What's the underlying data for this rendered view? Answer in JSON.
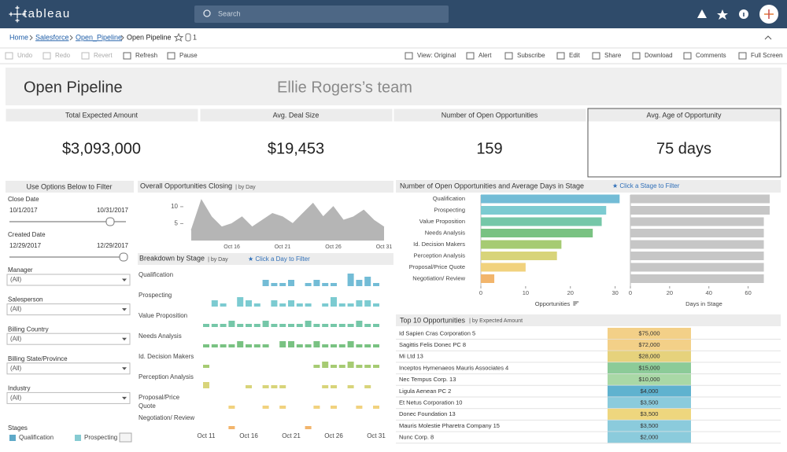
{
  "topbar": {
    "brand": "tableau",
    "search": "Search"
  },
  "breadcrumb": {
    "items": [
      "Home",
      "Salesforce",
      "Open_Pipeline",
      "Open Pipeline"
    ],
    "count": "1"
  },
  "toolbar": {
    "left": [
      "Undo",
      "Redo",
      "Revert",
      "Refresh",
      "Pause"
    ],
    "right": [
      "View: Original",
      "Alert",
      "Subscribe",
      "Edit",
      "Share",
      "Download",
      "Comments",
      "Full Screen"
    ]
  },
  "dashboard": {
    "title": "Open Pipeline",
    "team": "Ellie Rogers’s team"
  },
  "kpis": [
    {
      "label": "Total Expected Amount",
      "value": "$3,093,000"
    },
    {
      "label": "Avg. Deal Size",
      "value": "$19,453"
    },
    {
      "label": "Number of Open Opportunities",
      "value": "159"
    },
    {
      "label": "Avg. Age of Opportunity",
      "value": "75 days"
    }
  ],
  "filters": {
    "title": "Use Options Below to Filter",
    "close_date": {
      "label": "Close Date",
      "from": "10/1/2017",
      "to": "10/31/2017"
    },
    "created_date": {
      "label": "Created Date",
      "from": "12/29/2017",
      "to": "12/29/2017"
    },
    "dropdowns": [
      {
        "label": "Manager",
        "value": "(All)"
      },
      {
        "label": "Salesperson",
        "value": "(All)"
      },
      {
        "label": "Billing Country",
        "value": "(All)"
      },
      {
        "label": "Billing State/Province",
        "value": "(All)"
      },
      {
        "label": "Industry",
        "value": "(All)"
      }
    ],
    "stages": {
      "label": "Stages",
      "items": [
        {
          "name": "Qualification",
          "color": "#5ea9c8"
        },
        {
          "name": "Prospecting",
          "color": "#86cbd2"
        }
      ]
    }
  },
  "closing_chart": {
    "type": "area",
    "title": "Overall Opportunities Closing",
    "subtitle": "| by Day",
    "color": "#b5b5b5",
    "categories": [
      null,
      null,
      null,
      null,
      "Oct 16",
      null,
      null,
      null,
      null,
      "Oct 21",
      null,
      null,
      null,
      null,
      "Oct 26",
      null,
      null,
      null,
      null,
      "Oct 31"
    ],
    "values": [
      3,
      12,
      7,
      4,
      5,
      7,
      4,
      6,
      8,
      7,
      5,
      8,
      11,
      7,
      10,
      6,
      7,
      9,
      6,
      4
    ],
    "ylim": [
      0,
      13
    ],
    "yticks": [
      5,
      10
    ]
  },
  "breakdown_chart": {
    "type": "bar",
    "title": "Breakdown by Stage",
    "subtitle": "| by Day",
    "hint": "★ Click a Day to Filter",
    "categories": [
      "Oct 11",
      null,
      null,
      null,
      null,
      "Oct 16",
      null,
      null,
      null,
      null,
      "Oct 21",
      null,
      null,
      null,
      null,
      "Oct 26",
      null,
      null,
      null,
      null,
      "Oct 31"
    ],
    "ylim": [
      0,
      5
    ],
    "series": [
      {
        "name": "Qualification",
        "color": "#73bcd6",
        "values": [
          null,
          null,
          null,
          null,
          null,
          null,
          null,
          2,
          1,
          1,
          2,
          null,
          1,
          2,
          1,
          1,
          null,
          4,
          2,
          3,
          1
        ]
      },
      {
        "name": "Prospecting",
        "color": "#7ccbd1",
        "values": [
          null,
          2,
          1,
          null,
          3,
          2,
          1,
          null,
          2,
          1,
          2,
          1,
          1,
          null,
          1,
          3,
          1,
          1,
          2,
          2,
          1
        ]
      },
      {
        "name": "Value Proposition",
        "color": "#75c7a8",
        "values": [
          1,
          1,
          1,
          2,
          1,
          1,
          1,
          2,
          1,
          1,
          1,
          1,
          2,
          1,
          1,
          1,
          1,
          1,
          2,
          1,
          1
        ]
      },
      {
        "name": "Needs Analysis",
        "color": "#79c282",
        "values": [
          1,
          1,
          1,
          1,
          2,
          1,
          1,
          1,
          null,
          2,
          2,
          1,
          1,
          2,
          1,
          1,
          1,
          2,
          1,
          1,
          1
        ]
      },
      {
        "name": "Id. Decision Makers",
        "color": "#a6cb73",
        "values": [
          1,
          null,
          null,
          null,
          null,
          null,
          null,
          null,
          null,
          null,
          null,
          null,
          null,
          1,
          2,
          1,
          1,
          2,
          1,
          1,
          1
        ]
      },
      {
        "name": "Perception Analysis",
        "color": "#d8d47a",
        "values": [
          2,
          null,
          null,
          null,
          null,
          1,
          null,
          1,
          1,
          1,
          null,
          null,
          null,
          null,
          1,
          1,
          null,
          1,
          null,
          1,
          null
        ]
      },
      {
        "name": "Proposal/Price Quote",
        "color": "#f1d27e",
        "values": [
          null,
          null,
          null,
          1,
          null,
          null,
          null,
          1,
          null,
          1,
          null,
          null,
          null,
          1,
          null,
          1,
          null,
          null,
          1,
          null,
          1
        ]
      },
      {
        "name": "Negotiation/ Review",
        "color": "#f2b56c",
        "values": [
          null,
          null,
          null,
          1,
          null,
          null,
          null,
          null,
          null,
          null,
          null,
          null,
          1,
          null,
          null,
          null,
          null,
          null,
          null,
          null,
          null
        ]
      }
    ]
  },
  "stage_chart": {
    "type": "hbar",
    "title": "Number of Open Opportunities and Average Days in Stage",
    "hint": "★ Click a Stage to Filter",
    "categories": [
      "Qualification",
      "Prospecting",
      "Value Proposition",
      "Needs Analysis",
      "Id. Decision Makers",
      "Perception Analysis",
      "Proposal/Price Quote",
      "Negotiation/ Review"
    ],
    "series": [
      {
        "name": "Opportunities",
        "colors": [
          "#73bcd6",
          "#7ccbd1",
          "#75c7a8",
          "#79c282",
          "#a6cb73",
          "#d8d47a",
          "#f1d27e",
          "#f2b56c"
        ],
        "values": [
          31,
          28,
          27,
          25,
          18,
          17,
          10,
          3
        ],
        "xlim": [
          0,
          32
        ],
        "xticks": [
          0,
          10,
          20,
          30
        ]
      },
      {
        "name": "Days in Stage",
        "color": "#c6c6c6",
        "values": [
          71,
          71,
          68,
          68,
          68,
          68,
          68,
          68
        ],
        "xlim": [
          0,
          75
        ],
        "xticks": [
          0,
          20,
          40,
          60
        ]
      }
    ]
  },
  "top10": {
    "title": "Top 10 Opportunities",
    "subtitle": "| by Expected Amount",
    "rows": [
      {
        "name": "Id Sapien Cras Corporation 5",
        "amount": "$75,000",
        "color": "#f3d088"
      },
      {
        "name": "Sagittis Felis Donec PC 8",
        "amount": "$72,000",
        "color": "#f3d088"
      },
      {
        "name": "Mi Ltd 13",
        "amount": "$28,000",
        "color": "#e6d27c"
      },
      {
        "name": "Inceptos Hymenaeos Mauris Associates 4",
        "amount": "$15,000",
        "color": "#8ccb98"
      },
      {
        "name": "Nec Tempus Corp. 13",
        "amount": "$10,000",
        "color": "#a9d8a6"
      },
      {
        "name": "Ligula Aenean PC 2",
        "amount": "$4,000",
        "color": "#5fb2cf"
      },
      {
        "name": "Et Netus Corporation 10",
        "amount": "$3,500",
        "color": "#8bcbdc"
      },
      {
        "name": "Donec Foundation 13",
        "amount": "$3,500",
        "color": "#eed67e"
      },
      {
        "name": "Mauris Molestie Pharetra Company 15",
        "amount": "$3,500",
        "color": "#8bcbdc"
      },
      {
        "name": "Nunc Corp. 8",
        "amount": "$2,000",
        "color": "#8bcbdc"
      }
    ]
  }
}
